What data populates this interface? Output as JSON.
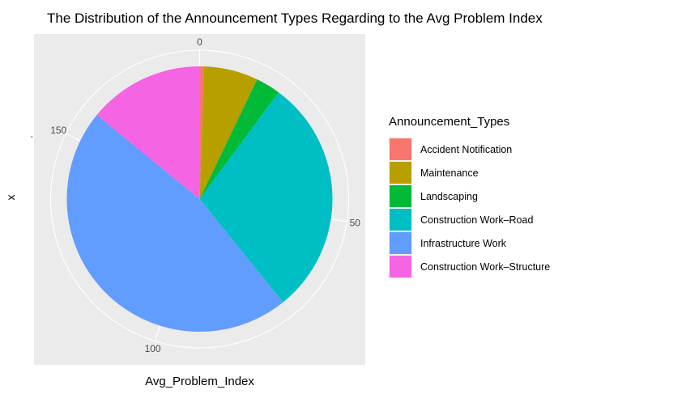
{
  "chart_data": {
    "type": "pie",
    "title": "The Distribution of the Announcement Types Regarding to the Avg Problem Index",
    "xlabel": "Avg_Problem_Index",
    "ylabel": "x",
    "y_tick_label": "-",
    "angular_ticks": [
      {
        "value": 0,
        "label": "0"
      },
      {
        "value": 50,
        "label": "50"
      },
      {
        "value": 100,
        "label": "100"
      },
      {
        "value": 150,
        "label": "150"
      }
    ],
    "axis_max": 182.4,
    "legend_title": "Announcement_Types",
    "legend_position": "right",
    "slices": [
      {
        "label": "Accident Notification",
        "value": 1.0,
        "color": "#F8766D"
      },
      {
        "label": "Maintenance",
        "value": 12.0,
        "color": "#B79F00"
      },
      {
        "label": "Landscaping",
        "value": 5.5,
        "color": "#00BA38"
      },
      {
        "label": "Construction Work–Road",
        "value": 53.0,
        "color": "#00BFC4"
      },
      {
        "label": "Infrastructure Work",
        "value": 85.2,
        "color": "#619CFF"
      },
      {
        "label": "Construction Work–Structure",
        "value": 25.7,
        "color": "#F564E3"
      }
    ],
    "panel_background": "#EBEBEB",
    "grid_color": "#FFFFFF"
  }
}
